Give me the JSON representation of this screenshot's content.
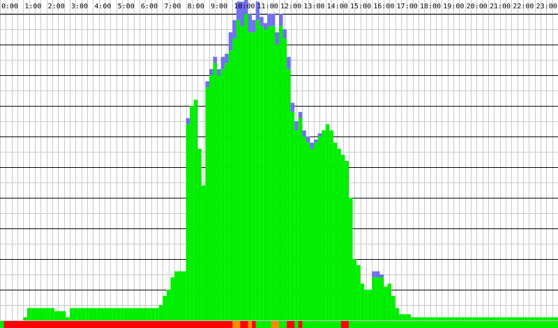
{
  "chart_data": {
    "type": "bar",
    "title": "",
    "xlabel": "",
    "ylabel": "",
    "x_tick_labels": [
      "0:00",
      "1:00",
      "2:00",
      "3:00",
      "4:00",
      "5:00",
      "6:00",
      "7:00",
      "8:00",
      "9:00",
      "10:00",
      "11:00",
      "12:00",
      "13:00",
      "14:00",
      "15:00",
      "16:00",
      "17:00",
      "18:00",
      "19:00",
      "20:00",
      "21:00",
      "22:00",
      "23:00"
    ],
    "xlim": [
      0,
      24
    ],
    "ylim": [
      0,
      100
    ],
    "grid": true,
    "legend": "none",
    "bucket_minutes": 10,
    "series": [
      {
        "values": [
          0,
          0,
          0,
          0,
          0,
          0,
          1,
          4,
          4,
          4,
          4,
          4,
          4,
          4,
          3,
          3,
          3,
          1,
          4,
          4,
          4,
          4,
          4,
          4,
          4,
          4,
          4,
          4,
          4,
          4,
          4,
          4,
          4,
          4,
          4,
          4,
          4,
          4,
          4,
          4,
          4,
          5,
          8,
          10,
          14,
          16,
          16,
          16,
          64,
          70,
          72,
          56,
          44,
          76,
          80,
          84,
          80,
          82,
          84,
          88,
          92,
          98,
          96,
          100,
          94,
          94,
          98,
          96,
          95,
          96,
          96,
          90,
          96,
          92,
          82,
          68,
          62,
          66,
          60,
          58,
          56,
          58,
          60,
          62,
          64,
          62,
          58,
          56,
          54,
          52,
          40,
          20,
          18,
          12,
          10,
          10,
          14,
          14,
          14,
          11,
          12,
          8,
          4,
          2,
          2,
          2,
          1,
          1,
          1,
          1,
          1,
          1,
          1,
          1,
          1,
          1,
          1,
          1,
          1,
          1,
          1,
          1,
          1,
          1,
          1,
          1,
          1,
          1,
          1,
          1,
          1,
          1,
          1,
          1,
          1,
          1,
          1,
          1,
          1,
          1,
          1,
          1,
          1,
          1,
          1,
          1,
          1,
          1,
          1,
          1
        ]
      },
      {
        "values": [
          0,
          0,
          0,
          0,
          0,
          0,
          0,
          0,
          0,
          0,
          0,
          0,
          0,
          0,
          0,
          0,
          0,
          0,
          0,
          0,
          0,
          0,
          0,
          0,
          0,
          0,
          0,
          0,
          0,
          0,
          0,
          0,
          0,
          0,
          0,
          0,
          0,
          0,
          0,
          0,
          0,
          0,
          0,
          0,
          0,
          0,
          0,
          0,
          2,
          0,
          0,
          0,
          0,
          2,
          2,
          2,
          2,
          4,
          3,
          6,
          6,
          6,
          8,
          8,
          6,
          4,
          6,
          3,
          2,
          4,
          4,
          4,
          4,
          3,
          4,
          3,
          3,
          2,
          2,
          2,
          2,
          1,
          1,
          0,
          0,
          0,
          0,
          0,
          0,
          0,
          0,
          0,
          0,
          0,
          0,
          0,
          2,
          2,
          1,
          0,
          0,
          0,
          0,
          0,
          0,
          0,
          0,
          0,
          0,
          0,
          0,
          0,
          0,
          0,
          0,
          0,
          0,
          0,
          0,
          0,
          0,
          0,
          0,
          0,
          0,
          0,
          0,
          0,
          0,
          0,
          0,
          0,
          0,
          0,
          0,
          0,
          0,
          0,
          0,
          0,
          0,
          0,
          0,
          0,
          0,
          0,
          0,
          0,
          0,
          0,
          0,
          0,
          0,
          0,
          0,
          0
        ]
      }
    ],
    "status_strip": [
      "green",
      "red",
      "red",
      "red",
      "red",
      "red",
      "red",
      "red",
      "red",
      "red",
      "red",
      "red",
      "red",
      "red",
      "red",
      "red",
      "red",
      "red",
      "red",
      "red",
      "red",
      "red",
      "red",
      "red",
      "red",
      "red",
      "red",
      "red",
      "red",
      "red",
      "red",
      "red",
      "red",
      "red",
      "red",
      "red",
      "red",
      "red",
      "red",
      "red",
      "red",
      "red",
      "red",
      "red",
      "red",
      "red",
      "red",
      "red",
      "red",
      "red",
      "red",
      "red",
      "red",
      "red",
      "red",
      "red",
      "red",
      "red",
      "red",
      "red",
      "orange",
      "orange",
      "red",
      "red",
      "orange",
      "red",
      "green",
      "green",
      "green",
      "green",
      "orange",
      "orange",
      "green",
      "green",
      "red",
      "red",
      "green",
      "red",
      "green",
      "green",
      "green",
      "green",
      "green",
      "green",
      "green",
      "green",
      "green",
      "green",
      "red",
      "red",
      "green",
      "green",
      "green",
      "green",
      "green",
      "green",
      "green",
      "green",
      "green",
      "green",
      "green",
      "green",
      "green",
      "green",
      "green",
      "green",
      "green",
      "green",
      "green",
      "green",
      "green",
      "green",
      "green",
      "green",
      "green",
      "green",
      "green",
      "green",
      "green",
      "green",
      "green",
      "green",
      "green",
      "green",
      "green",
      "green",
      "green",
      "green",
      "green",
      "green",
      "green",
      "green",
      "green",
      "green",
      "green",
      "green",
      "green",
      "green",
      "green",
      "green",
      "green",
      "green",
      "green",
      "green"
    ],
    "colors": {
      "series_primary": "#00ee00",
      "series_secondary": "#7070f0",
      "status_green": "#00ee00",
      "status_red": "#ff0000",
      "status_orange": "#ff8c00",
      "minor_grid": "#c8c8c8",
      "major_grid": "#000000",
      "background": "#ffffff"
    }
  }
}
